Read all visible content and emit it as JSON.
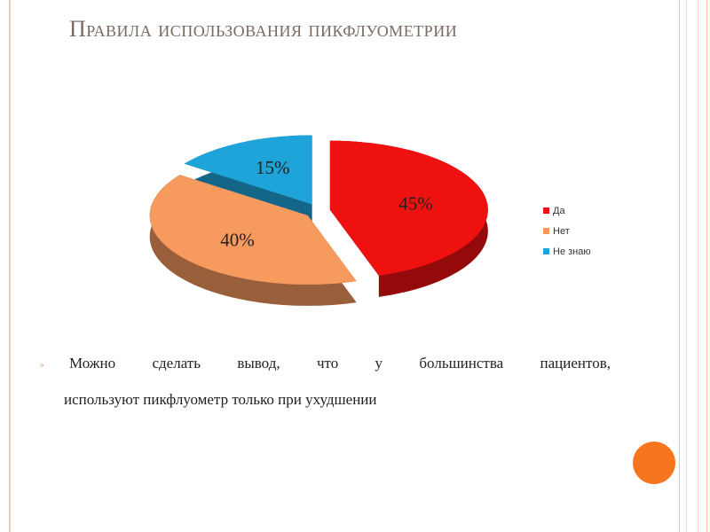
{
  "slide": {
    "title": "Правила использования пикфлуометрии",
    "bullet_line1": "Можно сделать вывод, что у большинства пациентов,",
    "bullet_line2": "используют пикфлуометр только при ухудшении"
  },
  "chart_data": {
    "type": "pie",
    "title": "",
    "categories": [
      "Да",
      "Нет",
      "Не знаю"
    ],
    "values": [
      45,
      40,
      15
    ],
    "labels": [
      "45%",
      "40%",
      "15%"
    ],
    "colors": [
      "#ef1010",
      "#f79a5e",
      "#1ea4d9"
    ],
    "legend_position": "right"
  },
  "colors": {
    "accent": "#f7751f",
    "frame": "#f2c9b4"
  }
}
